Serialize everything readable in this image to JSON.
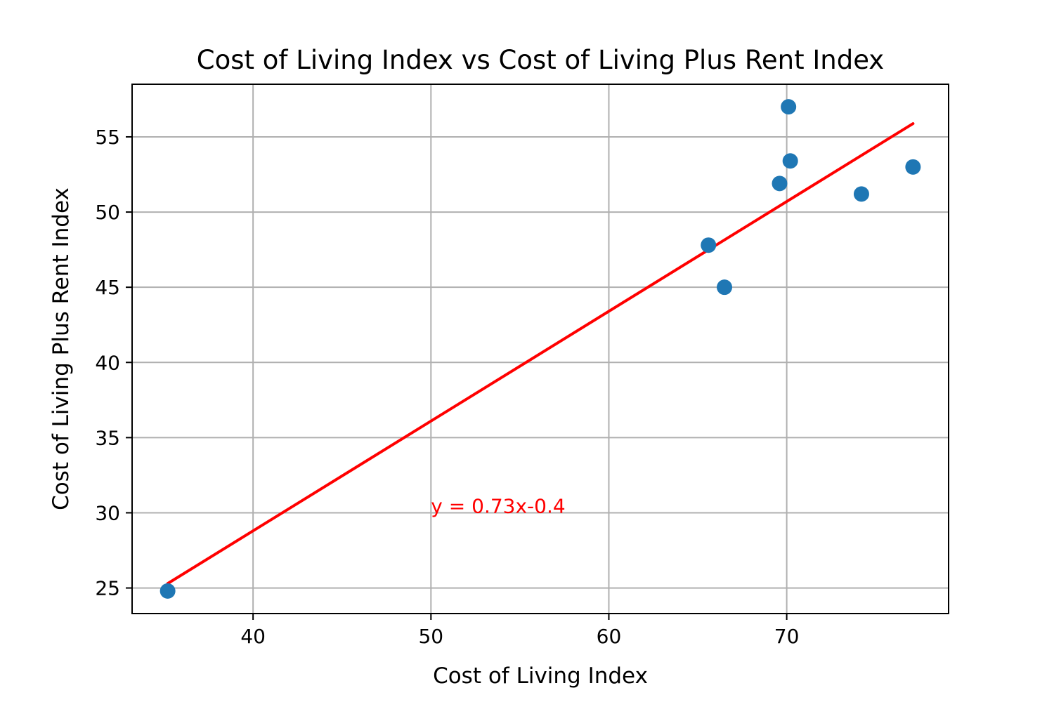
{
  "chart_data": {
    "type": "scatter",
    "title": "Cost of Living Index vs Cost of Living Plus Rent Index",
    "xlabel": "Cost of Living Index",
    "ylabel": "Cost of Living Plus Rent Index",
    "xlim": [
      33.2,
      79.1
    ],
    "ylim": [
      23.3,
      58.5
    ],
    "xticks": [
      40,
      50,
      60,
      70
    ],
    "yticks": [
      25,
      30,
      35,
      40,
      45,
      50,
      55
    ],
    "grid": true,
    "points": [
      {
        "x": 35.2,
        "y": 24.8
      },
      {
        "x": 65.6,
        "y": 47.8
      },
      {
        "x": 66.5,
        "y": 45.0
      },
      {
        "x": 69.6,
        "y": 51.9
      },
      {
        "x": 70.1,
        "y": 57.0
      },
      {
        "x": 70.2,
        "y": 53.4
      },
      {
        "x": 74.2,
        "y": 51.2
      },
      {
        "x": 77.1,
        "y": 53.0
      }
    ],
    "fit_line": {
      "slope": 0.73,
      "intercept": -0.4,
      "x_start": 35.2,
      "x_end": 77.1
    },
    "annotation": {
      "text": "y = 0.73x-0.4",
      "x": 50,
      "y": 30
    },
    "colors": {
      "points": "#1f77b4",
      "fit_line": "#ff0000",
      "annotation": "#ff0000",
      "grid": "#b0b0b0"
    }
  }
}
